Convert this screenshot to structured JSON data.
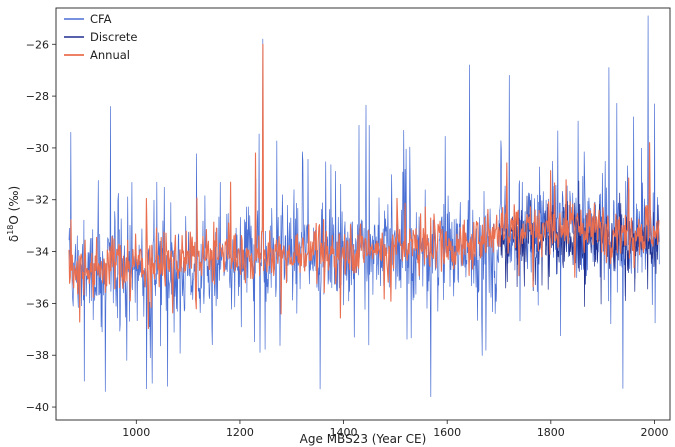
{
  "chart_data": {
    "type": "line",
    "xlabel": "Age MBS23 (Year CE)",
    "ylabel_parts": {
      "pre": "δ",
      "sup": "18",
      "post": "O (‰)"
    },
    "xlim": [
      845,
      2030
    ],
    "ylim": [
      -40.5,
      -24.6
    ],
    "xticks": [
      1000,
      1200,
      1400,
      1600,
      1800,
      2000
    ],
    "yticks": [
      -40,
      -38,
      -36,
      -34,
      -32,
      -30,
      -28,
      -26
    ],
    "ytick_labels": [
      "−40",
      "−38",
      "−36",
      "−34",
      "−32",
      "−30",
      "−28",
      "−26"
    ],
    "legend_position": "top-left",
    "grid": false,
    "series": [
      {
        "name": "CFA",
        "color": "#4a6fd4",
        "style": "thin",
        "description_profile": "high-frequency, ~1 sample per year, range -39.6 to -24.9",
        "segments": [
          {
            "x": [
              870,
              1000
            ],
            "mean": -34.8,
            "amp": 2.4
          },
          {
            "x": [
              1000,
              1200
            ],
            "mean": -34.7,
            "amp": 2.3
          },
          {
            "x": [
              1200,
              1400
            ],
            "mean": -34.0,
            "amp": 2.4
          },
          {
            "x": [
              1400,
              1600
            ],
            "mean": -33.9,
            "amp": 2.4
          },
          {
            "x": [
              1600,
              1700
            ],
            "mean": -33.9,
            "amp": 2.4
          },
          {
            "x": [
              1700,
              1850
            ],
            "mean": -33.0,
            "amp": 2.3
          },
          {
            "x": [
              1850,
              2010
            ],
            "mean": -33.3,
            "amp": 2.6
          }
        ],
        "peaks": [
          {
            "x": 874,
            "y": -29.4
          },
          {
            "x": 950,
            "y": -28.4
          },
          {
            "x": 1244,
            "y": -25.8
          },
          {
            "x": 1643,
            "y": -26.8
          },
          {
            "x": 1912,
            "y": -26.9
          },
          {
            "x": 1988,
            "y": -24.9
          },
          {
            "x": 1720,
            "y": -27.2
          },
          {
            "x": 1568,
            "y": -39.6
          },
          {
            "x": 940,
            "y": -39.4
          },
          {
            "x": 1355,
            "y": -39.3
          },
          {
            "x": 1060,
            "y": -39.2
          },
          {
            "x": 900,
            "y": -39.0
          },
          {
            "x": 2000,
            "y": -28.3
          },
          {
            "x": 1960,
            "y": -28.8
          }
        ]
      },
      {
        "name": "Discrete",
        "color": "#1f2f8f",
        "style": "thin",
        "x_range": [
          1700,
          2010
        ],
        "mean": -33.5,
        "amp": 1.6
      },
      {
        "name": "Annual",
        "color": "#e96f50",
        "style": "medium",
        "x_range": [
          870,
          2010
        ],
        "mean_profile": [
          {
            "x": 870,
            "y": -34.6
          },
          {
            "x": 1200,
            "y": -34.2
          },
          {
            "x": 1400,
            "y": -33.9
          },
          {
            "x": 1650,
            "y": -33.8
          },
          {
            "x": 1700,
            "y": -33.0
          },
          {
            "x": 2010,
            "y": -33.2
          }
        ],
        "amp": 1.4,
        "peaks": [
          {
            "x": 1244,
            "y": -26.0
          },
          {
            "x": 1230,
            "y": -30.2
          },
          {
            "x": 1990,
            "y": -29.8
          }
        ]
      }
    ]
  }
}
